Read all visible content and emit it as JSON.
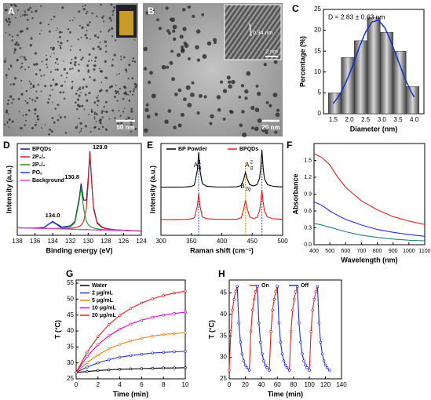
{
  "images": [
    {
      "label": "A",
      "scale_bar": "50 nm"
    },
    {
      "label": "B",
      "scale_bar": "20 nm",
      "inset_lattice": "0.34 nm",
      "inset_scale": "2 nm"
    }
  ],
  "chart_data": [
    {
      "type": "histogram",
      "panel": "C",
      "annotation": "D = 2.83 ± 0.63 nm",
      "xlabel": "Diameter (nm)",
      "ylabel": "Percentage (%)",
      "bins": [
        1.35,
        1.75,
        2.15,
        2.55,
        2.95,
        3.35,
        3.75,
        4.15
      ],
      "counts": [
        5,
        13.5,
        17.5,
        23,
        19.5,
        15,
        6.5
      ],
      "fit": {
        "color": "#1030d0",
        "x": [
          1.5,
          1.7,
          1.9,
          2.1,
          2.3,
          2.5,
          2.7,
          2.9,
          3.1,
          3.3,
          3.5,
          3.7,
          3.9,
          4.0
        ],
        "y": [
          2.4,
          4.5,
          7.6,
          11.5,
          15.8,
          19.6,
          22.0,
          22.4,
          20.5,
          17.0,
          12.8,
          8.7,
          5.3,
          4.0
        ]
      },
      "xlim": [
        1.2,
        4.3
      ],
      "ylim": [
        0,
        25
      ],
      "xticks": [
        1.5,
        {
          "value": 2,
          "label": "2.0"
        },
        2.5,
        {
          "value": 3,
          "label": "3.0"
        },
        3.5,
        {
          "value": 4,
          "label": "4.0"
        }
      ],
      "yticks": [
        0,
        5,
        10,
        15,
        20,
        25
      ]
    },
    {
      "type": "line",
      "panel": "D",
      "xlabel": "Binding energy (eV)",
      "ylabel": "Intensity (a.u.)",
      "annotations": [
        "129.8",
        "130.8",
        "134.0"
      ],
      "x": [
        138,
        137,
        136,
        135,
        134.5,
        134,
        133.5,
        133,
        132,
        131.5,
        131,
        130.8,
        130.5,
        130.2,
        130,
        129.8,
        129.6,
        129.4,
        129,
        128.5,
        128,
        127,
        126,
        125,
        124
      ],
      "series": [
        {
          "name": "BPQDs",
          "color": "#1a1a6e",
          "values": [
            9.1,
            8.8,
            8.7,
            9.5,
            13.2,
            16.5,
            13.3,
            10.0,
            11.4,
            16.8,
            45.4,
            62.2,
            42.1,
            42.1,
            67.8,
            100.8,
            64.4,
            34.0,
            15.7,
            10.3,
            8.3,
            6.7,
            6.0,
            5.5,
            5.2
          ]
        },
        {
          "name": "2P₃/₂",
          "color": "#e02020",
          "values": [
            9.0,
            8.7,
            8.5,
            8.2,
            8.1,
            8.0,
            7.9,
            8.2,
            8.5,
            9.0,
            10.7,
            12.2,
            17.1,
            32.1,
            61.6,
            96.7,
            61.5,
            31.8,
            14.4,
            9.5,
            7.8,
            6.6,
            6.0,
            5.5,
            5.2
          ]
        },
        {
          "name": "2P₁/₂",
          "color": "#1a9a1a",
          "values": [
            9.0,
            8.7,
            8.5,
            8.4,
            8.3,
            8.3,
            8.3,
            8.5,
            10.2,
            14.9,
            41.7,
            56.9,
            31.9,
            16.8,
            12.9,
            10.8,
            9.5,
            8.7,
            7.7,
            7.1,
            6.6,
            6.1,
            5.7,
            5.4,
            5.1
          ]
        },
        {
          "name": "POₓ",
          "color": "#2040e0",
          "values": [
            9.0,
            8.7,
            8.4,
            9.1,
            12.8,
            15.9,
            12.5,
            8.6,
            7.3,
            7.1,
            7.0,
            6.9,
            6.9,
            6.8,
            6.7,
            6.7,
            6.6,
            6.5,
            6.4,
            6.3,
            6.1,
            5.9,
            5.6,
            5.3,
            5.0
          ]
        },
        {
          "name": "Background",
          "color": "#e040e0",
          "values": [
            9.0,
            8.7,
            8.4,
            8.1,
            8.0,
            7.9,
            7.7,
            7.6,
            7.3,
            7.1,
            7.0,
            6.9,
            6.9,
            6.8,
            6.7,
            6.7,
            6.6,
            6.5,
            6.4,
            6.3,
            6.1,
            5.9,
            5.6,
            5.3,
            5.0
          ]
        }
      ],
      "xlim": [
        138,
        124
      ],
      "ylim": [
        0,
        110
      ],
      "xticks": [
        138,
        136,
        134,
        132,
        130,
        128,
        126,
        124
      ],
      "legend": "upper left"
    },
    {
      "type": "line",
      "panel": "E",
      "xlabel": "Raman shift (cm⁻¹)",
      "ylabel": "Intensity (a.u.)",
      "x": [
        300,
        320,
        340,
        350,
        355,
        360,
        362,
        364,
        368,
        375,
        390,
        410,
        425,
        432,
        436,
        439,
        442,
        446,
        452,
        458,
        462,
        464,
        466,
        468,
        470,
        475,
        485,
        500
      ],
      "series": [
        {
          "name": "BP Powder",
          "color": "#000000",
          "values": [
            55,
            55,
            55.3,
            56,
            57.5,
            75,
            95,
            75,
            59,
            56.3,
            55.3,
            55.2,
            55.5,
            57,
            64,
            72,
            64,
            58,
            56.5,
            58,
            65,
            77,
            98,
            77,
            65,
            58,
            56,
            55.3
          ]
        },
        {
          "name": "BPQDs",
          "color": "#e02020",
          "values": [
            18,
            18,
            18.2,
            18.8,
            20,
            34,
            48,
            34,
            21,
            19,
            18.3,
            18.2,
            18.5,
            20,
            30,
            40,
            30,
            21,
            19,
            20.5,
            28,
            38,
            52,
            38,
            28,
            21,
            18.8,
            18.3
          ]
        }
      ],
      "peaks": [
        {
          "x": 362,
          "color": "#2244ee",
          "label": {
            "base": "A",
            "sub": "g",
            "sup": "1"
          }
        },
        {
          "x": 439,
          "color": "#ee8800",
          "label": {
            "base": "B",
            "sub": "2g"
          }
        },
        {
          "x": 466,
          "color": "#2244ee",
          "label": {
            "base": "A",
            "sub": "g",
            "sup": "2"
          }
        }
      ],
      "xlim": [
        300,
        500
      ],
      "ylim": [
        0,
        105
      ],
      "xticks": [
        300,
        350,
        400,
        450,
        500
      ],
      "legend": "upper center"
    },
    {
      "type": "line",
      "panel": "F",
      "xlabel": "Wavelength (nm)",
      "ylabel": "Absorbance",
      "x": [
        400,
        450,
        500,
        550,
        600,
        700,
        800,
        900,
        1000,
        1100
      ],
      "series": [
        {
          "color": "#e02020",
          "values": [
            1.62,
            1.55,
            1.42,
            1.2,
            1.02,
            0.78,
            0.62,
            0.5,
            0.42,
            0.36
          ]
        },
        {
          "color": "#2030e0",
          "values": [
            0.76,
            0.7,
            0.6,
            0.52,
            0.45,
            0.35,
            0.27,
            0.22,
            0.18,
            0.15
          ]
        },
        {
          "color": "#208080",
          "values": [
            0.38,
            0.35,
            0.31,
            0.27,
            0.23,
            0.17,
            0.13,
            0.1,
            0.08,
            0.07
          ]
        }
      ],
      "xlim": [
        400,
        1100
      ],
      "ylim": [
        0,
        1.8
      ],
      "xticks": [
        400,
        500,
        600,
        700,
        800,
        900,
        1000,
        1100
      ],
      "yticks": [
        {
          "value": 0,
          "label": "0.0"
        },
        0.3,
        0.6,
        0.9,
        1.2,
        1.5
      ]
    },
    {
      "type": "line",
      "panel": "G",
      "xlabel": "Time (min)",
      "ylabel": "T (°C)",
      "markers": true,
      "x": [
        0,
        1,
        2,
        3,
        4,
        5,
        6,
        7,
        8,
        9,
        10
      ],
      "series": [
        {
          "name": "Water",
          "color": "#000000",
          "values": [
            27,
            27.3,
            27.6,
            27.8,
            28.0,
            28.1,
            28.2,
            28.3,
            28.4,
            28.4,
            28.5
          ]
        },
        {
          "name": "2 μg/mL",
          "color": "#2030e0",
          "values": [
            27,
            28.7,
            30.0,
            31.0,
            31.8,
            32.3,
            32.7,
            33.1,
            33.3,
            33.5,
            33.6
          ]
        },
        {
          "name": "5 μg/mL",
          "color": "#f08000",
          "values": [
            27,
            30.1,
            32.5,
            34.4,
            35.8,
            36.9,
            37.7,
            38.4,
            38.9,
            39.2,
            39.5
          ]
        },
        {
          "name": "10 μg/mL",
          "color": "#e000e0",
          "values": [
            27,
            32.0,
            35.7,
            38.5,
            40.6,
            42.2,
            43.4,
            44.3,
            45.0,
            45.5,
            45.9
          ]
        },
        {
          "name": "20 μg/mL",
          "color": "#e02020",
          "values": [
            27,
            33.4,
            38.2,
            42.0,
            44.9,
            47.1,
            48.8,
            50.1,
            51.1,
            51.9,
            52.5
          ]
        }
      ],
      "xlim": [
        0,
        10
      ],
      "ylim": [
        25,
        56
      ],
      "xticks": [
        0,
        2,
        4,
        6,
        8,
        10
      ],
      "yticks": [
        25,
        30,
        35,
        40,
        45,
        50,
        55
      ],
      "legend": "upper left"
    },
    {
      "type": "line",
      "panel": "H",
      "xlabel": "Time (min)",
      "ylabel": "T (°C)",
      "markers": true,
      "series": [
        {
          "name": "On",
          "color": "#e02020",
          "x": [
            0,
            2,
            4,
            6,
            8,
            10,
            null,
            25,
            27,
            29,
            31,
            33,
            35,
            null,
            50,
            52,
            54,
            56,
            58,
            60,
            null,
            75,
            77,
            79,
            81,
            83,
            85,
            null,
            100,
            102,
            104,
            106,
            108,
            110
          ],
          "values": [
            27,
            36,
            41,
            43.5,
            45.3,
            46.5,
            null,
            27,
            36,
            41,
            43.5,
            45.3,
            46.5,
            null,
            27,
            36,
            41,
            43.5,
            45.3,
            46.5,
            null,
            27,
            36,
            41,
            43.5,
            45.3,
            46.5,
            null,
            27,
            36,
            41,
            43.5,
            45.3,
            46.5
          ]
        },
        {
          "name": "Off",
          "color": "#2030e0",
          "x": [
            10,
            12,
            14,
            16,
            18,
            20,
            22,
            25,
            null,
            35,
            37,
            39,
            41,
            43,
            45,
            47,
            50,
            null,
            60,
            62,
            64,
            66,
            68,
            70,
            72,
            75,
            null,
            85,
            87,
            89,
            91,
            93,
            95,
            97,
            100,
            null,
            110,
            112,
            114,
            116,
            118,
            120,
            122,
            125
          ],
          "values": [
            46.5,
            38,
            33.5,
            30.8,
            29.2,
            28.2,
            27.6,
            27.0,
            null,
            46.5,
            38,
            33.5,
            30.8,
            29.2,
            28.2,
            27.6,
            27.0,
            null,
            46.5,
            38,
            33.5,
            30.8,
            29.2,
            28.2,
            27.6,
            27.0,
            null,
            46.5,
            38,
            33.5,
            30.8,
            29.2,
            28.2,
            27.6,
            27.0,
            null,
            46.5,
            38,
            33.5,
            30.8,
            29.2,
            28.2,
            27.6,
            27.0
          ]
        }
      ],
      "xlim": [
        0,
        140
      ],
      "ylim": [
        25,
        48
      ],
      "xticks": [
        0,
        20,
        40,
        60,
        80,
        100,
        120,
        140
      ],
      "yticks": [
        25,
        30,
        35,
        40,
        45
      ],
      "legend": "upper center"
    }
  ]
}
